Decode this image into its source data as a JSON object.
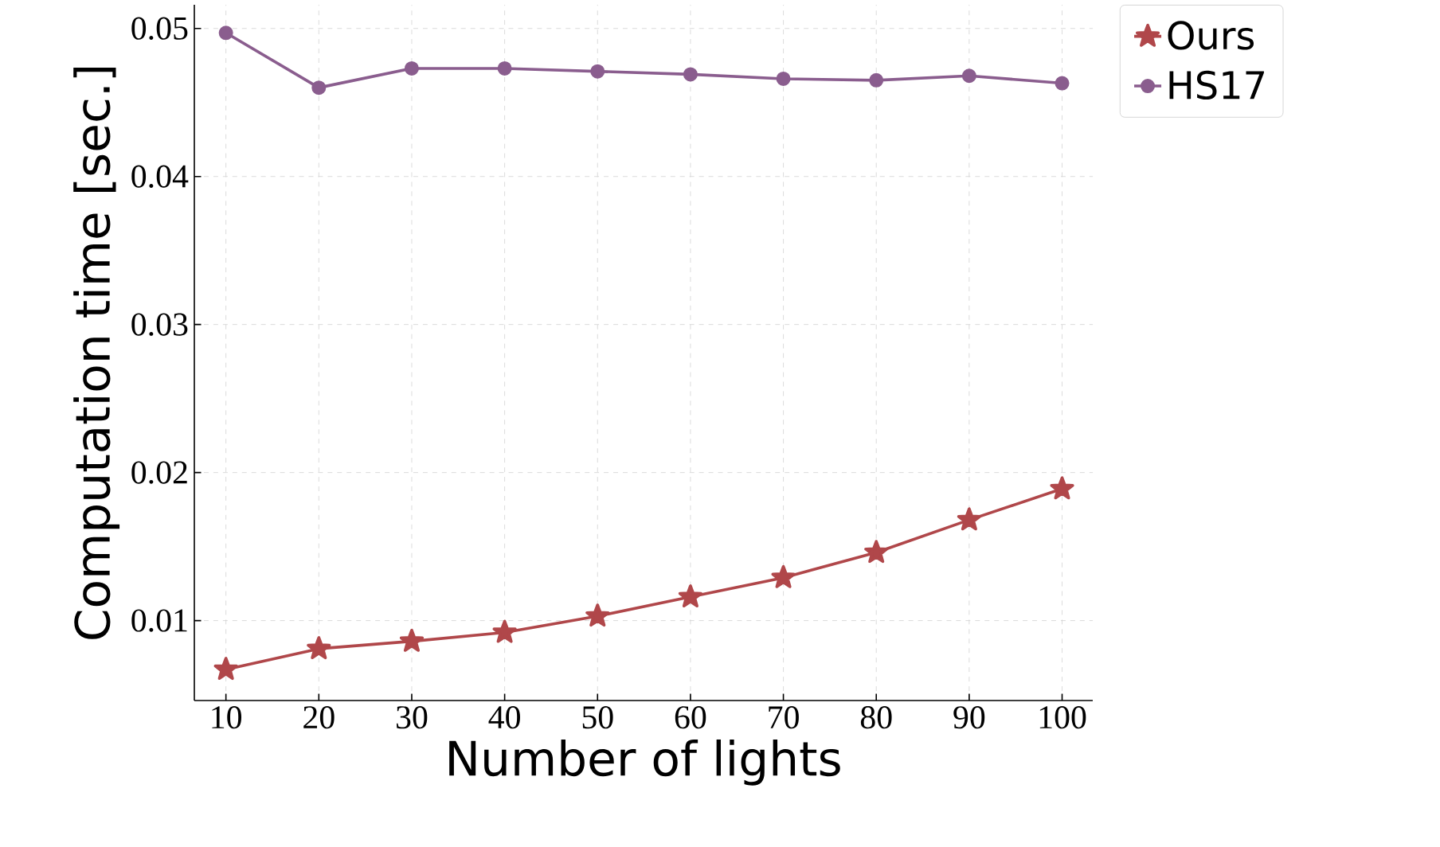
{
  "chart_data": {
    "type": "line",
    "xlabel": "Number of lights",
    "ylabel": "Computation time [sec.]",
    "x": [
      10,
      20,
      30,
      40,
      50,
      60,
      70,
      80,
      90,
      100
    ],
    "series": [
      {
        "name": "Ours",
        "color": "#b0474a",
        "marker": "star",
        "values": [
          0.0067,
          0.0081,
          0.0086,
          0.0092,
          0.0103,
          0.0116,
          0.0129,
          0.0146,
          0.0168,
          0.0189
        ]
      },
      {
        "name": "HS17",
        "color": "#8a5d8e",
        "marker": "circle",
        "values": [
          0.0497,
          0.046,
          0.0473,
          0.0473,
          0.0471,
          0.0469,
          0.0466,
          0.0465,
          0.0468,
          0.0463
        ]
      }
    ],
    "xlim": [
      6.6,
      103.3
    ],
    "ylim": [
      0.0046,
      0.0516
    ],
    "xticks": [
      10,
      20,
      30,
      40,
      50,
      60,
      70,
      80,
      90,
      100
    ],
    "yticks": [
      {
        "value": 0.01,
        "label": "0.01"
      },
      {
        "value": 0.02,
        "label": "0.02"
      },
      {
        "value": 0.03,
        "label": "0.03"
      },
      {
        "value": 0.04,
        "label": "0.04"
      },
      {
        "value": 0.05,
        "label": "0.05"
      }
    ],
    "grid": true,
    "legend": "top right",
    "line_style": "solid"
  }
}
